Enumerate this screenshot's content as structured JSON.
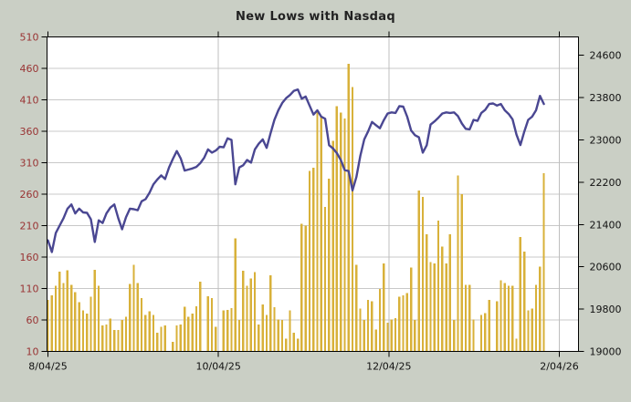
{
  "title": "New Lows with Nasdaq",
  "colors": {
    "background": "#cacfc5",
    "plot_background": "#ffffff",
    "grid_horizontal": "#c8c8c8",
    "grid_vertical": "#bfbfbf",
    "frame": "#000000",
    "bar": "#d8b13a",
    "line": "#4a4792",
    "left_axis_text": "#993333",
    "right_axis_text": "#111111",
    "x_axis_text": "#111111",
    "title_text": "#222222"
  },
  "chart_data": {
    "type": "bar",
    "title": "New Lows with Nasdaq",
    "grid": true,
    "legend": "none",
    "x_tick_labels": [
      "8/04/25",
      "10/04/25",
      "12/04/25",
      "2/04/26"
    ],
    "left_axis": {
      "min": 10,
      "max": 510,
      "tick_step": 50,
      "tick_labels": [
        "510",
        "460",
        "410",
        "360",
        "310",
        "260",
        "210",
        "160",
        "110",
        "60",
        "10"
      ]
    },
    "right_axis": {
      "min": 19000,
      "max": 24948,
      "tick_step": 800,
      "tick_labels": [
        "24600",
        "23800",
        "23000",
        "22200",
        "21400",
        "20600",
        "19800",
        "19000"
      ]
    },
    "series": [
      {
        "name": "New Lows",
        "type": "bar",
        "axis": "left",
        "values": [
          92,
          99,
          114,
          137,
          119,
          139,
          116,
          104,
          88,
          75,
          70,
          97,
          140,
          114,
          51,
          53,
          62,
          44,
          44,
          60,
          65,
          117,
          148,
          119,
          95,
          68,
          74,
          68,
          40,
          49,
          51,
          null,
          25,
          51,
          53,
          81,
          65,
          70,
          82,
          121,
          null,
          98,
          95,
          49,
          null,
          75,
          76,
          79,
          190,
          60,
          138,
          114,
          126,
          136,
          53,
          85,
          68,
          131,
          80,
          61,
          60,
          30,
          75,
          40,
          30,
          213,
          210,
          297,
          302,
          392,
          385,
          240,
          285,
          345,
          400,
          390,
          380,
          467,
          430,
          148,
          78,
          60,
          92,
          90,
          45,
          109,
          150,
          56,
          61,
          63,
          97,
          99,
          103,
          143,
          60,
          266,
          256,
          196,
          152,
          150,
          218,
          177,
          150,
          196,
          60,
          290,
          260,
          116,
          116,
          61,
          null,
          68,
          71,
          92,
          null,
          90,
          123,
          119,
          114,
          114,
          30,
          192,
          169,
          75,
          78,
          116,
          145,
          293
        ]
      },
      {
        "name": "Nasdaq",
        "type": "line",
        "axis": "right",
        "values": [
          21100,
          20880,
          21240,
          21380,
          21520,
          21700,
          21780,
          21610,
          21700,
          21630,
          21620,
          21500,
          21070,
          21480,
          21430,
          21610,
          21720,
          21780,
          21520,
          21310,
          21540,
          21700,
          21690,
          21670,
          21840,
          21880,
          22000,
          22160,
          22250,
          22330,
          22260,
          22480,
          22640,
          22790,
          22650,
          22420,
          22440,
          22460,
          22490,
          22560,
          22660,
          22820,
          22760,
          22800,
          22870,
          22860,
          23030,
          23000,
          22160,
          22480,
          22520,
          22620,
          22570,
          22820,
          22930,
          23010,
          22850,
          23120,
          23380,
          23560,
          23700,
          23790,
          23850,
          23930,
          23954,
          23780,
          23820,
          23650,
          23480,
          23560,
          23440,
          23400,
          22900,
          22840,
          22750,
          22620,
          22430,
          22410,
          22044,
          22300,
          22700,
          23010,
          23160,
          23340,
          23280,
          23220,
          23370,
          23500,
          23520,
          23510,
          23640,
          23630,
          23440,
          23180,
          23090,
          23050,
          22760,
          22900,
          23290,
          23350,
          23420,
          23500,
          23520,
          23510,
          23520,
          23450,
          23310,
          23210,
          23200,
          23380,
          23360,
          23510,
          23570,
          23680,
          23690,
          23650,
          23680,
          23560,
          23490,
          23390,
          23100,
          22904,
          23160,
          23380,
          23440,
          23560,
          23833,
          23680
        ]
      }
    ]
  }
}
